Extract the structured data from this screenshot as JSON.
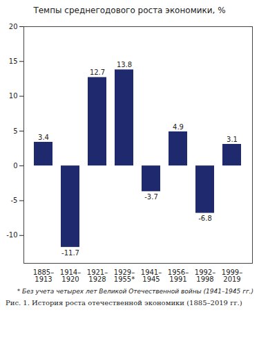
{
  "chart_data": {
    "type": "bar",
    "title": "Темпы среднегодового роста экономики, %",
    "caption": "Рис. 1. История роста отечественной экономики (1885–2019 гг.)",
    "annotations": [
      "* Без учета четырех лет Великой Отечественной войны (1941–1945 гг.)"
    ],
    "categories": [
      "1885–1913",
      "1914–1920",
      "1921–1928",
      "1929–1955*",
      "1941–1945",
      "1956–1991",
      "1992–1998",
      "1999–2019"
    ],
    "values": [
      3.4,
      -11.7,
      12.7,
      13.8,
      -3.7,
      4.9,
      -6.8,
      3.1
    ],
    "color": "#1f2a6e",
    "ylim": [
      -14,
      20
    ],
    "yticks": [
      -10,
      -5,
      0,
      5,
      10,
      15,
      20
    ],
    "grid": false,
    "data_labels": true
  }
}
